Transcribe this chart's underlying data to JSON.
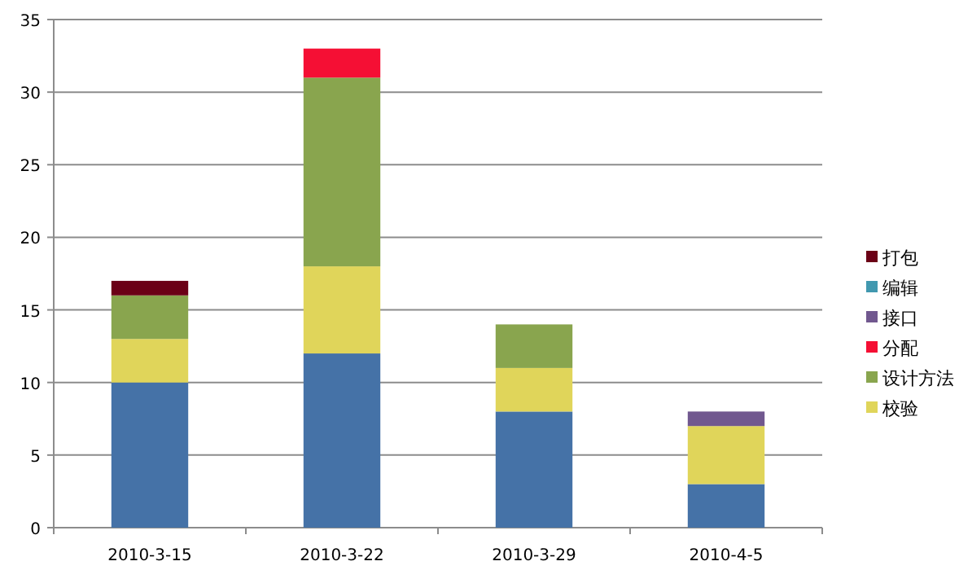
{
  "chart_data": {
    "type": "bar",
    "stacked": true,
    "categories": [
      "2010-3-15",
      "2010-3-22",
      "2010-3-29",
      "2010-4-5"
    ],
    "series": [
      {
        "color": "#4572a7",
        "values": [
          10,
          12,
          8,
          3
        ]
      },
      {
        "name": "校验",
        "color": "#e0d55a",
        "values": [
          3,
          6,
          3,
          4
        ]
      },
      {
        "name": "设计方法",
        "color": "#89a54e",
        "values": [
          3,
          13,
          3,
          null
        ]
      },
      {
        "name": "分配",
        "color": "#f50f34",
        "values": [
          null,
          2,
          null,
          null
        ]
      },
      {
        "name": "接口",
        "color": "#71588f",
        "values": [
          null,
          null,
          null,
          1
        ]
      },
      {
        "name": "编辑",
        "color": "#4198af",
        "values": [
          null,
          null,
          null,
          null
        ]
      },
      {
        "name": "打包",
        "color": "#6b0016",
        "values": [
          1,
          null,
          null,
          null
        ]
      }
    ],
    "ylim": [
      0,
      35
    ],
    "yticks": [
      0,
      5,
      10,
      15,
      20,
      25,
      30,
      35
    ],
    "grid": "y",
    "legend": "right"
  }
}
